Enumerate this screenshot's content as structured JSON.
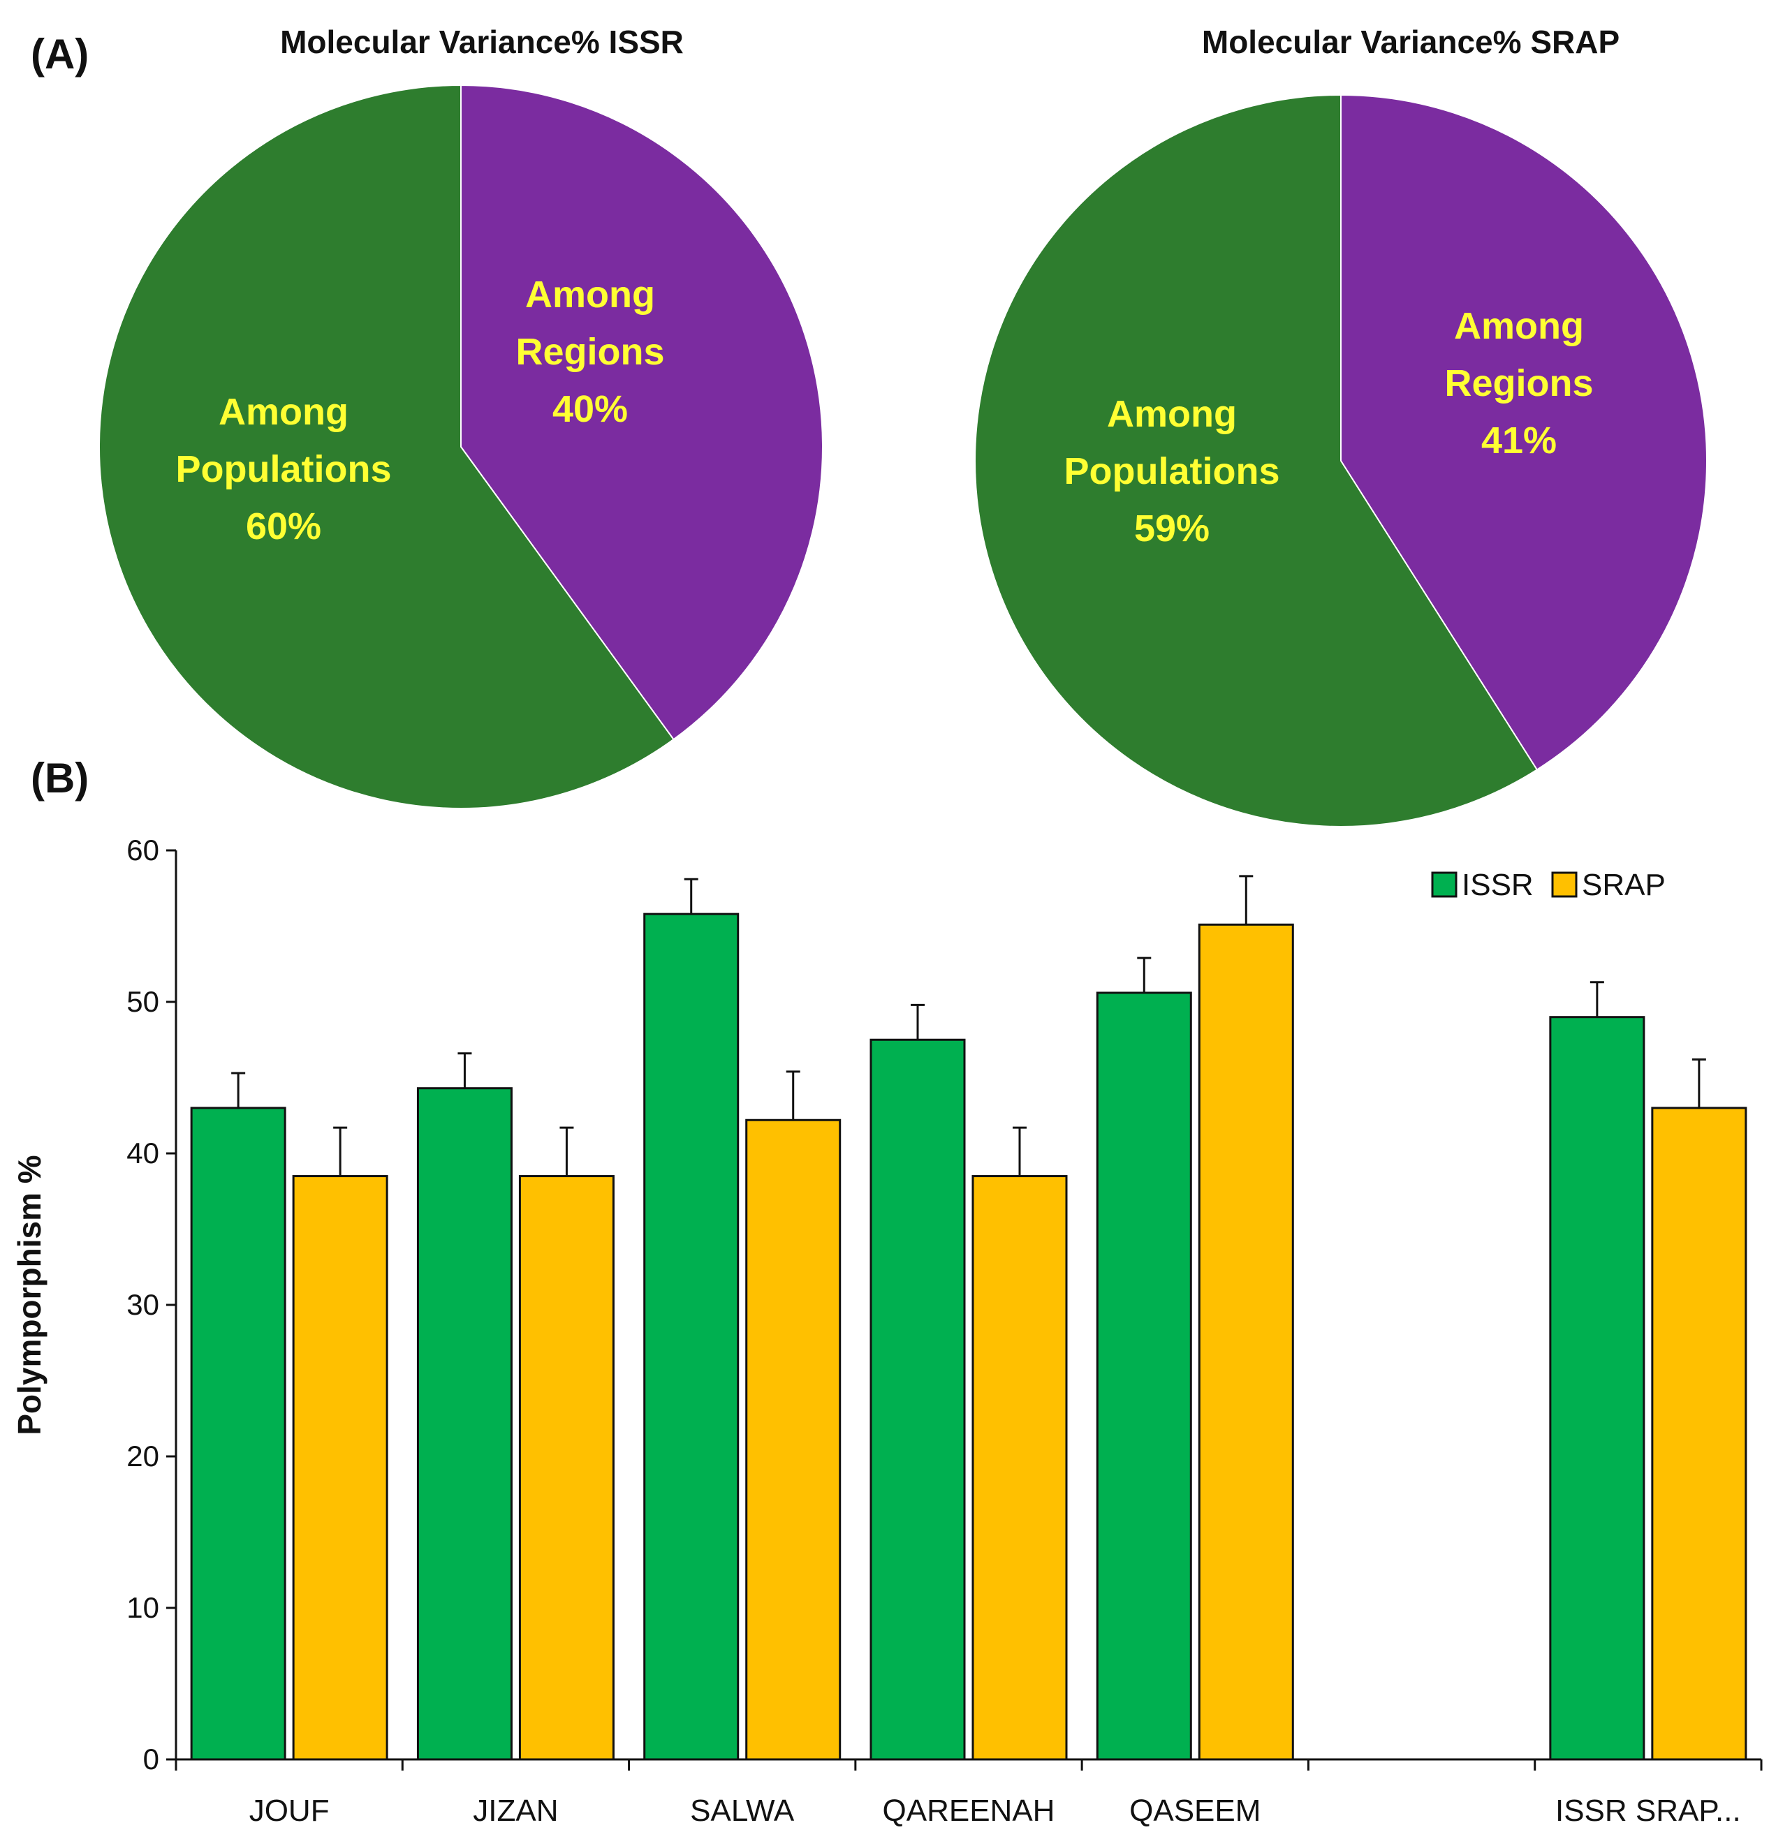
{
  "panels": {
    "a_label": "(A)",
    "b_label": "(B)"
  },
  "chart_data": [
    {
      "type": "pie",
      "title": "Molecular Variance%  ISSR",
      "slices": [
        {
          "label_line1": "Among",
          "label_line2": "Regions",
          "pct_label": "40%",
          "value": 40,
          "color": "#7B2CA0"
        },
        {
          "label_line1": "Among",
          "label_line2": "Populations",
          "pct_label": "60%",
          "value": 60,
          "color": "#2E7D2E"
        }
      ]
    },
    {
      "type": "pie",
      "title": "Molecular Variance%  SRAP",
      "slices": [
        {
          "label_line1": "Among",
          "label_line2": "Regions",
          "pct_label": "41%",
          "value": 41,
          "color": "#7B2CA0"
        },
        {
          "label_line1": "Among",
          "label_line2": "Populations",
          "pct_label": "59%",
          "value": 59,
          "color": "#2E7D2E"
        }
      ]
    },
    {
      "type": "bar",
      "ylabel": "Polymporphism %",
      "ylim": [
        0,
        60
      ],
      "yticks": [
        "0",
        "10",
        "20",
        "30",
        "40",
        "50",
        "60"
      ],
      "categories": [
        "JOUF",
        "JIZAN",
        "SALWA",
        "QAREENAH",
        "QASEEM",
        "",
        "ISSR  SRAP..."
      ],
      "series": [
        {
          "name": "ISSR",
          "color": "#00B050",
          "values": [
            43,
            44.3,
            55.8,
            47.5,
            50.6,
            null,
            49.0
          ],
          "errors": [
            2.3,
            2.3,
            2.3,
            2.3,
            2.3,
            null,
            2.3
          ]
        },
        {
          "name": "SRAP",
          "color": "#FFC000",
          "values": [
            38.5,
            38.5,
            42.2,
            38.5,
            55.1,
            null,
            43.0
          ],
          "errors": [
            3.2,
            3.2,
            3.2,
            3.2,
            3.2,
            null,
            3.2
          ]
        }
      ],
      "legend_position": "top-right"
    }
  ]
}
